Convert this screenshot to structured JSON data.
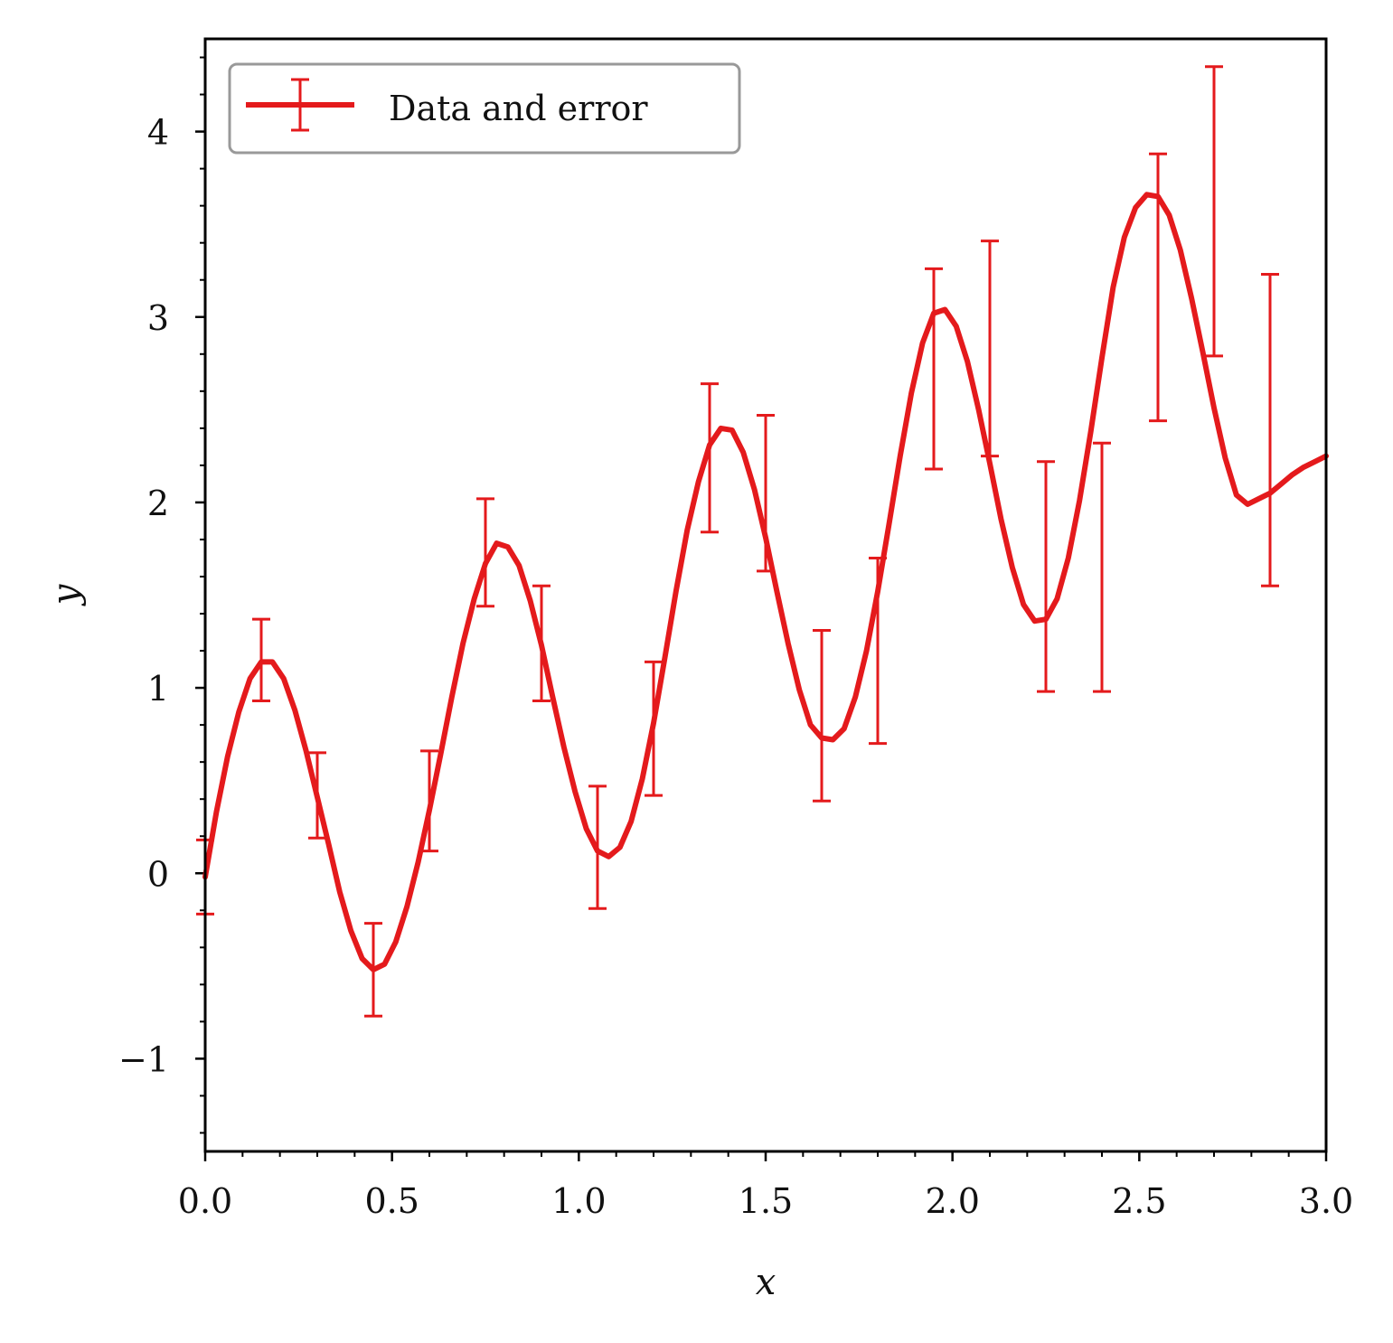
{
  "chart_data": {
    "type": "line",
    "title": "",
    "xlabel": "x",
    "ylabel": "y",
    "xlim": [
      0.0,
      3.0
    ],
    "ylim": [
      -1.5,
      4.5
    ],
    "x_ticks": [
      0.0,
      0.5,
      1.0,
      1.5,
      2.0,
      2.5,
      3.0
    ],
    "x_tick_labels": [
      "0.0",
      "0.5",
      "1.0",
      "1.5",
      "2.0",
      "2.5",
      "3.0"
    ],
    "y_ticks": [
      -1,
      0,
      1,
      2,
      3,
      4
    ],
    "y_tick_labels": [
      "−1",
      "0",
      "1",
      "2",
      "3",
      "4"
    ],
    "grid": false,
    "legend": {
      "position": "top-left",
      "entries": [
        "Data and error"
      ]
    },
    "line_color": "#e41a1c",
    "series": [
      {
        "name": "Data and error",
        "x": [
          0.0,
          0.03,
          0.06,
          0.09,
          0.12,
          0.15,
          0.18,
          0.21,
          0.24,
          0.27,
          0.3,
          0.33,
          0.36,
          0.39,
          0.42,
          0.45,
          0.48,
          0.51,
          0.54,
          0.57,
          0.6,
          0.63,
          0.66,
          0.69,
          0.72,
          0.75,
          0.78,
          0.81,
          0.84,
          0.87,
          0.9,
          0.93,
          0.96,
          0.99,
          1.02,
          1.05,
          1.08,
          1.11,
          1.14,
          1.17,
          1.2,
          1.23,
          1.26,
          1.29,
          1.32,
          1.35,
          1.38,
          1.41,
          1.44,
          1.47,
          1.5,
          1.53,
          1.56,
          1.59,
          1.62,
          1.65,
          1.68,
          1.71,
          1.74,
          1.77,
          1.8,
          1.83,
          1.86,
          1.89,
          1.92,
          1.95,
          1.98,
          2.01,
          2.04,
          2.07,
          2.1,
          2.13,
          2.16,
          2.19,
          2.22,
          2.25,
          2.28,
          2.31,
          2.34,
          2.37,
          2.4,
          2.43,
          2.46,
          2.49,
          2.52,
          2.55,
          2.58,
          2.61,
          2.64,
          2.67,
          2.7,
          2.73,
          2.76,
          2.79,
          2.82,
          2.85,
          2.88,
          2.91,
          2.94,
          2.97,
          3.0
        ],
        "y": [
          -0.02,
          0.33,
          0.63,
          0.87,
          1.05,
          1.14,
          1.14,
          1.05,
          0.88,
          0.66,
          0.41,
          0.16,
          -0.1,
          -0.31,
          -0.46,
          -0.52,
          -0.49,
          -0.37,
          -0.18,
          0.06,
          0.34,
          0.64,
          0.95,
          1.24,
          1.48,
          1.67,
          1.78,
          1.76,
          1.66,
          1.47,
          1.23,
          0.95,
          0.68,
          0.44,
          0.24,
          0.12,
          0.09,
          0.14,
          0.28,
          0.51,
          0.81,
          1.16,
          1.52,
          1.85,
          2.11,
          2.31,
          2.4,
          2.39,
          2.27,
          2.07,
          1.81,
          1.52,
          1.24,
          0.99,
          0.8,
          0.73,
          0.72,
          0.78,
          0.95,
          1.2,
          1.52,
          1.88,
          2.25,
          2.59,
          2.86,
          3.02,
          3.04,
          2.95,
          2.76,
          2.5,
          2.21,
          1.91,
          1.65,
          1.45,
          1.36,
          1.37,
          1.48,
          1.7,
          2.01,
          2.38,
          2.78,
          3.16,
          3.43,
          3.59,
          3.66,
          3.65,
          3.55,
          3.36,
          3.1,
          2.81,
          2.51,
          2.24,
          2.04,
          1.99,
          2.02,
          2.05,
          2.1,
          2.15,
          2.19,
          2.22,
          2.25
        ]
      }
    ],
    "error_bars": [
      {
        "x": 0.0,
        "y": -0.02,
        "err": 0.2
      },
      {
        "x": 0.15,
        "y": 1.15,
        "err": 0.22
      },
      {
        "x": 0.3,
        "y": 0.42,
        "err": 0.23
      },
      {
        "x": 0.45,
        "y": -0.52,
        "err": 0.25
      },
      {
        "x": 0.6,
        "y": 0.39,
        "err": 0.27
      },
      {
        "x": 0.75,
        "y": 1.73,
        "err": 0.29
      },
      {
        "x": 0.9,
        "y": 1.24,
        "err": 0.31
      },
      {
        "x": 1.05,
        "y": 0.14,
        "err": 0.33
      },
      {
        "x": 1.2,
        "y": 0.78,
        "err": 0.36
      },
      {
        "x": 1.35,
        "y": 2.24,
        "err": 0.4
      },
      {
        "x": 1.5,
        "y": 2.05,
        "err": 0.42
      },
      {
        "x": 1.65,
        "y": 0.85,
        "err": 0.46
      },
      {
        "x": 1.8,
        "y": 1.2,
        "err": 0.5
      },
      {
        "x": 1.95,
        "y": 2.72,
        "err": 0.54
      },
      {
        "x": 2.1,
        "y": 2.83,
        "err": 0.58
      },
      {
        "x": 2.25,
        "y": 1.6,
        "err": 0.62
      },
      {
        "x": 2.4,
        "y": 1.65,
        "err": 0.67
      },
      {
        "x": 2.55,
        "y": 3.16,
        "err": 0.72
      },
      {
        "x": 2.7,
        "y": 3.57,
        "err": 0.78
      },
      {
        "x": 2.85,
        "y": 2.39,
        "err": 0.84
      }
    ]
  }
}
